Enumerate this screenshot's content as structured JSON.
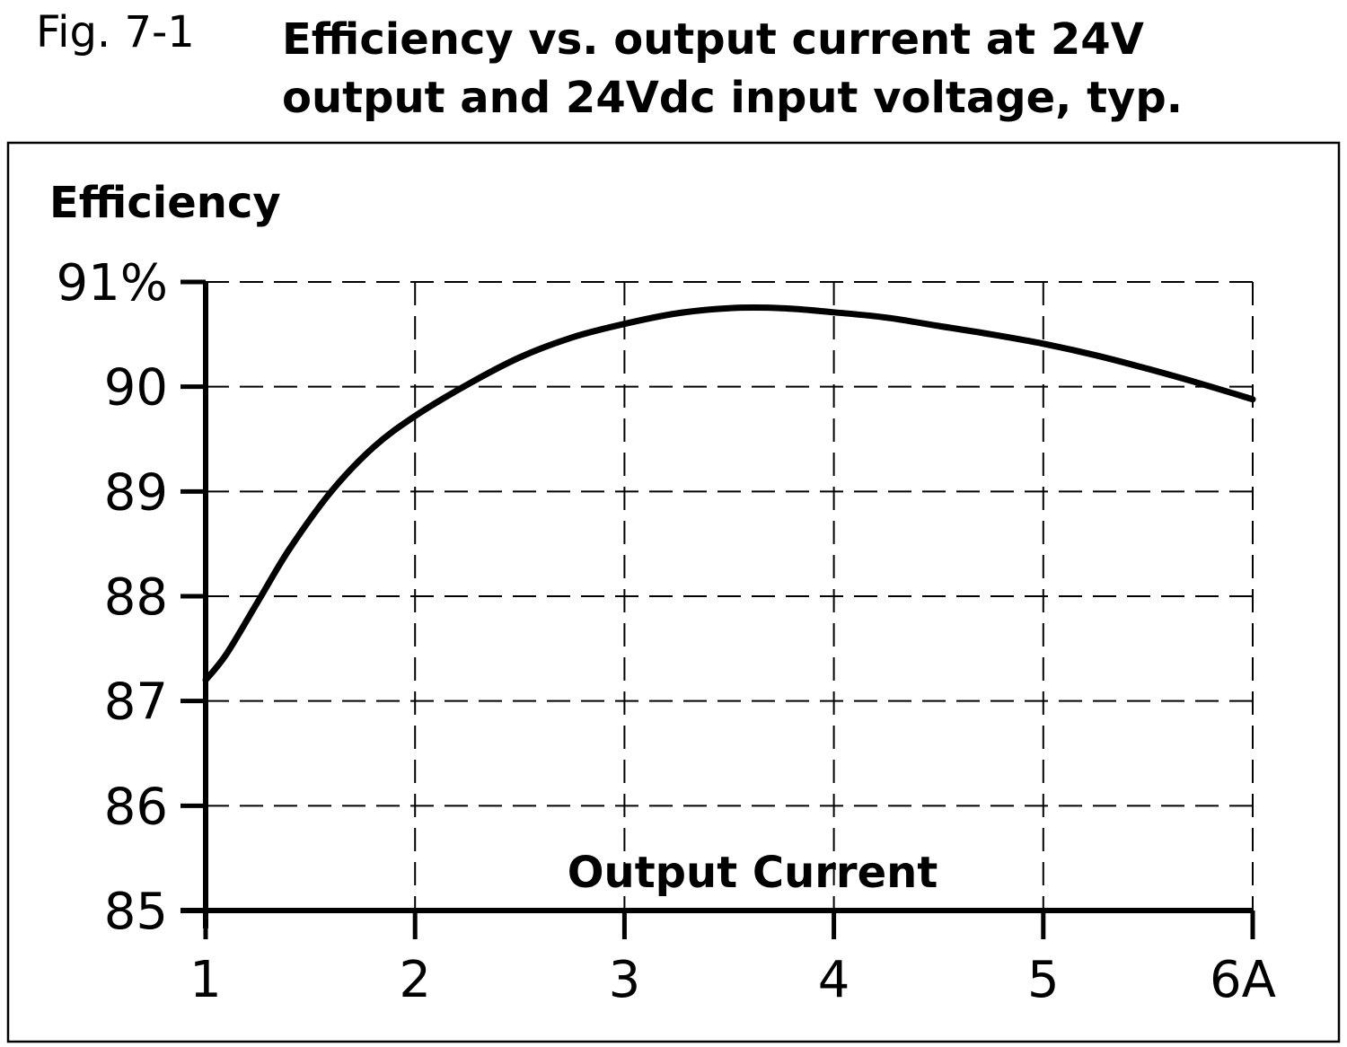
{
  "figure": {
    "number": "Fig. 7-1",
    "title_line1": "Efficiency vs. output current at 24V",
    "title_line2": "output and 24Vdc input voltage, typ."
  },
  "chart_data": {
    "type": "line",
    "title": "Efficiency vs. output current at 24V output and 24Vdc input voltage, typ.",
    "xlabel": "Output Current",
    "ylabel": "Efficiency",
    "xlim": [
      1,
      6
    ],
    "ylim": [
      85,
      91
    ],
    "x_ticks": [
      1,
      2,
      3,
      4,
      5,
      6
    ],
    "x_tick_labels": [
      "1",
      "2",
      "3",
      "4",
      "5",
      "6A"
    ],
    "y_ticks": [
      85,
      86,
      87,
      88,
      89,
      90,
      91
    ],
    "y_tick_labels": [
      "85",
      "86",
      "87",
      "88",
      "89",
      "90",
      "91%"
    ],
    "grid": true,
    "grid_style": "dashed",
    "series": [
      {
        "x": [
          1.0,
          1.1,
          1.25,
          1.4,
          1.6,
          1.8,
          2.0,
          2.25,
          2.5,
          2.75,
          3.0,
          3.25,
          3.5,
          3.75,
          4.0,
          4.25,
          4.5,
          4.75,
          5.0,
          5.25,
          5.5,
          5.75,
          6.0
        ],
        "y": [
          87.2,
          87.45,
          87.95,
          88.45,
          89.0,
          89.42,
          89.72,
          90.02,
          90.28,
          90.47,
          90.6,
          90.7,
          90.75,
          90.75,
          90.71,
          90.66,
          90.58,
          90.5,
          90.41,
          90.3,
          90.17,
          90.03,
          89.88
        ],
        "color": "#000000"
      }
    ],
    "axis_color": "#000000",
    "grid_color": "#000000",
    "background": "#ffffff"
  }
}
